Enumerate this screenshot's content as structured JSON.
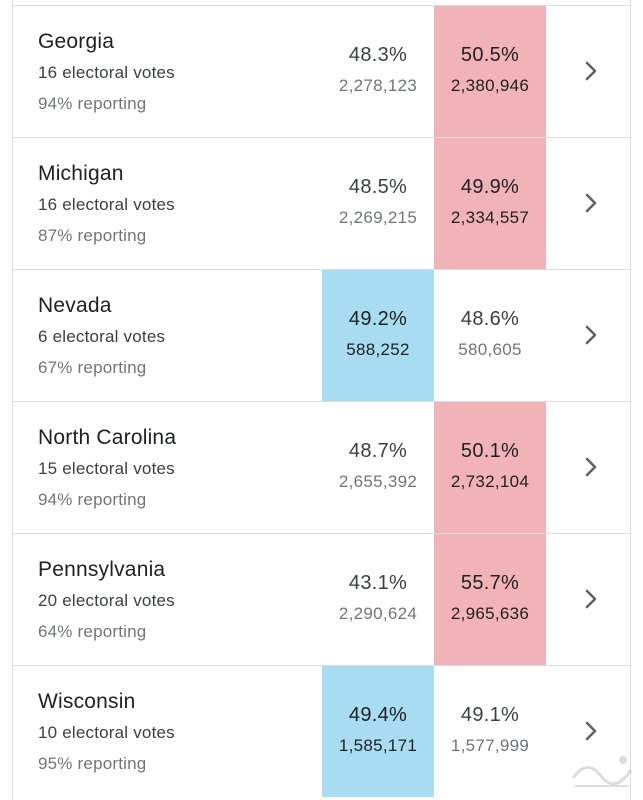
{
  "rows": [
    {
      "state": "Georgia",
      "votes": "16 electoral votes",
      "reporting": "94% reporting",
      "dem_pct": "48.3%",
      "dem_count": "2,278,123",
      "rep_pct": "50.5%",
      "rep_count": "2,380,946",
      "leader": "rep"
    },
    {
      "state": "Michigan",
      "votes": "16 electoral votes",
      "reporting": "87% reporting",
      "dem_pct": "48.5%",
      "dem_count": "2,269,215",
      "rep_pct": "49.9%",
      "rep_count": "2,334,557",
      "leader": "rep"
    },
    {
      "state": "Nevada",
      "votes": "6 electoral votes",
      "reporting": "67% reporting",
      "dem_pct": "49.2%",
      "dem_count": "588,252",
      "rep_pct": "48.6%",
      "rep_count": "580,605",
      "leader": "dem"
    },
    {
      "state": "North Carolina",
      "votes": "15 electoral votes",
      "reporting": "94% reporting",
      "dem_pct": "48.7%",
      "dem_count": "2,655,392",
      "rep_pct": "50.1%",
      "rep_count": "2,732,104",
      "leader": "rep"
    },
    {
      "state": "Pennsylvania",
      "votes": "20 electoral votes",
      "reporting": "64% reporting",
      "dem_pct": "43.1%",
      "dem_count": "2,290,624",
      "rep_pct": "55.7%",
      "rep_count": "2,965,636",
      "leader": "rep"
    },
    {
      "state": "Wisconsin",
      "votes": "10 electoral votes",
      "reporting": "95% reporting",
      "dem_pct": "49.4%",
      "dem_count": "1,585,171",
      "rep_pct": "49.1%",
      "rep_count": "1,577,999",
      "leader": "dem"
    }
  ],
  "colors": {
    "dem_lead": "#a8dcf0",
    "rep_lead": "#f2b3b8",
    "divider": "#dadce0"
  },
  "icons": {
    "row_action": "chevron-right-icon"
  }
}
